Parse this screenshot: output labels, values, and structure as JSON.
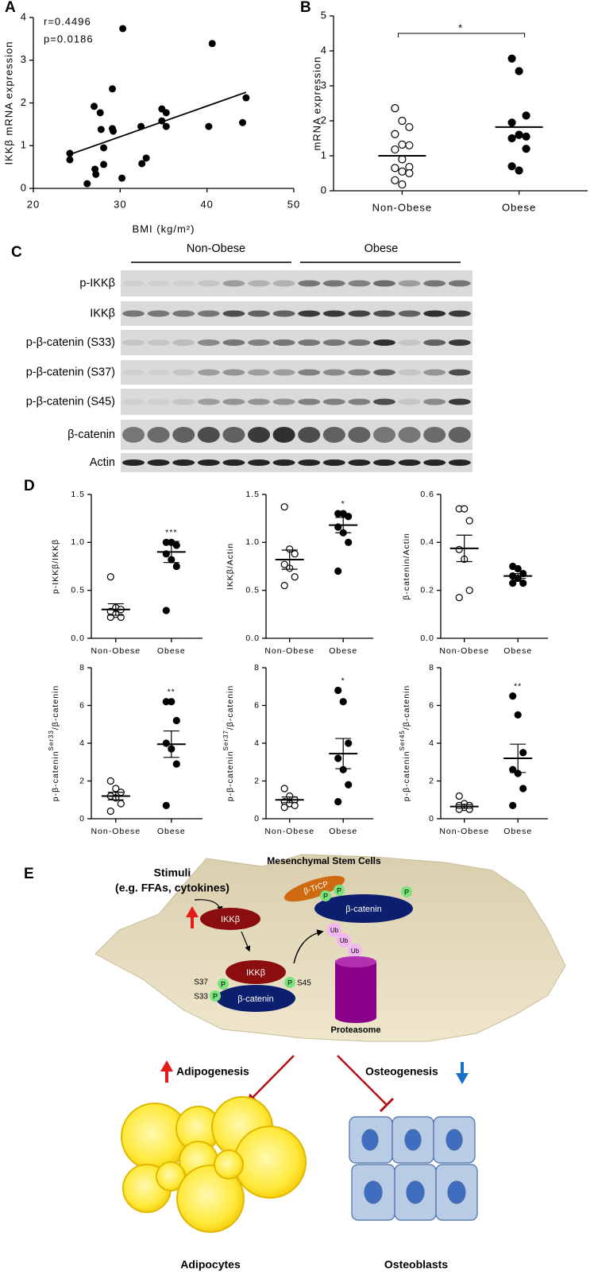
{
  "panel_labels": [
    "A",
    "B",
    "C",
    "D",
    "E"
  ],
  "chart_data": [
    {
      "type": "scatter",
      "xlabel": "BMI (kg/m²)",
      "ylabel": "IKKβ mRNA expression",
      "annotations": [
        "r=0.4496",
        "p=0.0186"
      ],
      "color": "#000000",
      "x": [
        24.2,
        24.2,
        27.0,
        27.7,
        27.8,
        27.1,
        27.2,
        28.1,
        28.1,
        29.1,
        29.1,
        29.2,
        30.3,
        30.2,
        32.4,
        32.5,
        33.0,
        34.8,
        34.8,
        35.3,
        35.3,
        40.6,
        40.2,
        44.1,
        44.5,
        26.2
      ],
      "y": [
        0.82,
        0.67,
        1.92,
        1.77,
        1.38,
        0.45,
        0.33,
        0.95,
        0.56,
        2.33,
        1.4,
        1.34,
        3.74,
        0.24,
        1.45,
        0.58,
        0.71,
        1.86,
        1.58,
        1.77,
        1.45,
        3.39,
        1.45,
        1.54,
        2.12,
        0.11
      ],
      "trendline": {
        "x": [
          24,
          44.5
        ],
        "y": [
          0.78,
          2.25
        ]
      },
      "xlim": [
        20,
        50
      ],
      "xticks": [
        20,
        30,
        40,
        50
      ],
      "ylim": [
        0,
        4
      ],
      "yticks": [
        0,
        1,
        2,
        3,
        4
      ]
    },
    {
      "type": "dot",
      "ylabel": "mRNA expression",
      "categories": [
        "Non-Obese",
        "Obese"
      ],
      "groups": [
        {
          "marker": "open",
          "values": [
            2.36,
            2.0,
            1.82,
            1.62,
            1.32,
            1.3,
            1.18,
            0.9,
            0.68,
            0.65,
            0.55,
            0.5,
            0.3,
            0.18
          ],
          "mean": 1.0
        },
        {
          "marker": "filled",
          "values": [
            3.78,
            3.42,
            2.15,
            1.95,
            1.6,
            1.55,
            1.5,
            1.6,
            1.2,
            0.7,
            0.58
          ],
          "mean": 1.82
        }
      ],
      "ylim": [
        0,
        5
      ],
      "yticks": [
        0,
        1,
        2,
        3,
        4,
        5
      ],
      "significance": "*",
      "significance_style": "bracket"
    },
    {
      "type": "dot",
      "ylabel": "p-IKKβ/IKKβ",
      "categories": [
        "Non-Obese",
        "Obese"
      ],
      "groups": [
        {
          "marker": "open",
          "values": [
            0.64,
            0.32,
            0.3,
            0.28,
            0.25,
            0.22,
            0.22
          ],
          "mean": 0.3,
          "sem": 0.06
        },
        {
          "marker": "filled",
          "values": [
            1.0,
            1.0,
            0.97,
            0.88,
            0.82,
            0.75,
            0.29
          ],
          "mean": 0.9,
          "sem": 0.11
        }
      ],
      "ylim": [
        0,
        1.5
      ],
      "yticks": [
        {
          "value": 0,
          "label": "0.0"
        },
        0.5,
        {
          "value": 1,
          "label": "1.0"
        },
        1.5
      ],
      "significance": "***",
      "significance_style": "above"
    },
    {
      "type": "dot",
      "ylabel": "IKKβ/Actin",
      "categories": [
        "Non-Obese",
        "Obese"
      ],
      "groups": [
        {
          "marker": "open",
          "values": [
            1.37,
            0.93,
            0.88,
            0.77,
            0.73,
            0.64,
            0.55
          ],
          "mean": 0.82,
          "sem": 0.1
        },
        {
          "marker": "filled",
          "values": [
            1.3,
            1.3,
            1.27,
            1.16,
            1.1,
            1.0,
            0.7
          ],
          "mean": 1.18,
          "sem": 0.08
        }
      ],
      "ylim": [
        0,
        1.5
      ],
      "yticks": [
        {
          "value": 0,
          "label": "0.0"
        },
        0.5,
        {
          "value": 1,
          "label": "1.0"
        },
        1.5
      ],
      "significance": "*",
      "significance_style": "above"
    },
    {
      "type": "dot",
      "ylabel": "β-catenin/Actin",
      "categories": [
        "Non-Obese",
        "Obese"
      ],
      "groups": [
        {
          "marker": "open",
          "values": [
            0.54,
            0.54,
            0.49,
            0.37,
            0.33,
            0.2,
            0.17
          ],
          "mean": 0.375,
          "sem": 0.055
        },
        {
          "marker": "filled",
          "values": [
            0.3,
            0.29,
            0.27,
            0.26,
            0.25,
            0.23,
            0.23
          ],
          "mean": 0.26,
          "sem": 0.01
        }
      ],
      "ylim": [
        0,
        0.6
      ],
      "yticks": [
        {
          "value": 0,
          "label": "0.0"
        },
        0.2,
        0.4,
        0.6
      ]
    },
    {
      "type": "dot",
      "ylabel": {
        "base": "p-β-catenin",
        "sup": "Ser33",
        "rest": "/β-catenin"
      },
      "categories": [
        "Non-Obese",
        "Obese"
      ],
      "groups": [
        {
          "marker": "open",
          "values": [
            2.0,
            1.6,
            1.4,
            1.2,
            1.1,
            0.8,
            0.4
          ],
          "mean": 1.2,
          "sem": 0.2
        },
        {
          "marker": "filled",
          "values": [
            6.2,
            6.2,
            5.2,
            4.0,
            3.7,
            2.9,
            0.7
          ],
          "mean": 3.95,
          "sem": 0.7
        }
      ],
      "ylim": [
        0,
        8
      ],
      "yticks": [
        0,
        2,
        4,
        6,
        8
      ],
      "significance": "**",
      "significance_style": "above"
    },
    {
      "type": "dot",
      "ylabel": {
        "base": "p-β-catenin",
        "sup": "Ser37",
        "rest": "/β-catenin"
      },
      "categories": [
        "Non-Obese",
        "Obese"
      ],
      "groups": [
        {
          "marker": "open",
          "values": [
            1.6,
            1.2,
            1.0,
            0.9,
            0.8,
            0.7,
            0.6
          ],
          "mean": 1.0,
          "sem": 0.15
        },
        {
          "marker": "filled",
          "values": [
            6.8,
            6.2,
            4.0,
            3.2,
            2.6,
            1.8,
            0.9
          ],
          "mean": 3.45,
          "sem": 0.8
        }
      ],
      "ylim": [
        0,
        8
      ],
      "yticks": [
        0,
        2,
        4,
        6,
        8
      ],
      "significance": "*",
      "significance_style": "above"
    },
    {
      "type": "dot",
      "ylabel": {
        "base": "p-β-catenin",
        "sup": "Ser45",
        "rest": "/β-catenin"
      },
      "categories": [
        "Non-Obese",
        "Obese"
      ],
      "groups": [
        {
          "marker": "open",
          "values": [
            1.2,
            0.8,
            0.7,
            0.7,
            0.6,
            0.5,
            0.5
          ],
          "mean": 0.65,
          "sem": 0.1
        },
        {
          "marker": "filled",
          "values": [
            6.5,
            5.5,
            3.5,
            2.6,
            2.4,
            1.6,
            0.7
          ],
          "mean": 3.2,
          "sem": 0.75
        }
      ],
      "ylim": [
        0,
        8
      ],
      "yticks": [
        0,
        2,
        4,
        6,
        8
      ],
      "significance": "**",
      "significance_style": "above"
    }
  ],
  "blot": {
    "groups": [
      "Non-Obese",
      "Obese"
    ],
    "rows": [
      "p-IKKβ",
      "IKKβ",
      "p-β-catenin (S33)",
      "p-β-catenin (S37)",
      "p-β-catenin (S45)",
      "β-catenin",
      "Actin"
    ]
  },
  "diagram": {
    "stimuli": "Stimuli",
    "stimuli_examples": "(e.g. FFAs, cytokines)",
    "cell": "Mesenchymal Stem Cells",
    "ikkb": "IKKβ",
    "btrcp": "β-TrCP",
    "bcatenin": "β-catenin",
    "phospho": "P",
    "ubiquitin": "Ub",
    "sites": [
      "S37",
      "S33",
      "S45"
    ],
    "proteasome": "Proteasome",
    "adipogenesis": "Adipogenesis",
    "osteogenesis": "Osteogenesis",
    "adipocytes": "Adipocytes",
    "osteoblasts": "Osteoblasts"
  }
}
